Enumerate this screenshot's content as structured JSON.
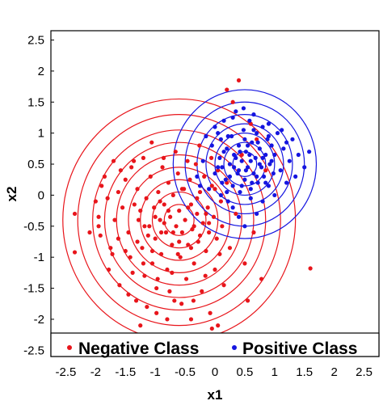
{
  "chart_data": {
    "type": "scatter",
    "xlabel": "x1",
    "ylabel": "x2",
    "xlim": [
      -2.75,
      2.75
    ],
    "ylim": [
      -2.6,
      2.65
    ],
    "xticks": [
      "-2.5",
      "-2",
      "-1.5",
      "-1",
      "-0.5",
      "0",
      "0.5",
      "1",
      "1.5",
      "2",
      "2.5"
    ],
    "xtick_values": [
      -2.5,
      -2,
      -1.5,
      -1,
      -0.5,
      0,
      0.5,
      1,
      1.5,
      2,
      2.5
    ],
    "yticks": [
      "2.5",
      "2",
      "1.5",
      "1",
      "0.5",
      "0",
      "-0.5",
      "-1",
      "-1.5",
      "-2",
      "-2.5"
    ],
    "ytick_values": [
      2.5,
      2,
      1.5,
      1,
      0.5,
      0,
      -0.5,
      -1,
      -1.5,
      -2,
      -2.5
    ],
    "grid": false,
    "legend_position": "bottom inside",
    "series": [
      {
        "name": "Negative Class",
        "color": "#e8151b",
        "contour_center": [
          -0.6,
          -0.4
        ],
        "contour_radii": [
          0.25,
          0.45,
          0.65,
          0.85,
          1.05,
          1.25,
          1.45,
          1.7,
          1.95
        ],
        "points": [
          [
            -2.35,
            -0.3
          ],
          [
            -2.35,
            -0.92
          ],
          [
            -2.1,
            -0.6
          ],
          [
            -2.0,
            -0.1
          ],
          [
            -1.95,
            -0.35
          ],
          [
            -1.92,
            -0.65
          ],
          [
            -1.9,
            0.15
          ],
          [
            -1.85,
            0.3
          ],
          [
            -1.8,
            -0.05
          ],
          [
            -1.78,
            -1.2
          ],
          [
            -1.75,
            -0.85
          ],
          [
            -1.7,
            0.55
          ],
          [
            -1.68,
            -0.4
          ],
          [
            -1.62,
            0.05
          ],
          [
            -1.6,
            -1.45
          ],
          [
            -1.55,
            -0.2
          ],
          [
            -1.5,
            0.25
          ],
          [
            -1.45,
            -0.6
          ],
          [
            -1.42,
            -1.0
          ],
          [
            -1.4,
            0.45
          ],
          [
            -1.35,
            -0.15
          ],
          [
            -1.32,
            -1.7
          ],
          [
            -1.3,
            0.1
          ],
          [
            -1.28,
            -0.4
          ],
          [
            -1.25,
            -2.1
          ],
          [
            -1.22,
            -0.85
          ],
          [
            -1.2,
            0.6
          ],
          [
            -1.18,
            -1.3
          ],
          [
            -1.15,
            -0.05
          ],
          [
            -1.1,
            -0.5
          ],
          [
            -1.08,
            0.3
          ],
          [
            -1.05,
            -1.1
          ],
          [
            -1.02,
            -0.2
          ],
          [
            -1.0,
            -0.7
          ],
          [
            -0.98,
            -1.5
          ],
          [
            -0.95,
            0.05
          ],
          [
            -0.92,
            -0.4
          ],
          [
            -0.9,
            -0.95
          ],
          [
            -0.88,
            0.45
          ],
          [
            -0.85,
            -0.15
          ],
          [
            -0.82,
            -0.6
          ],
          [
            -0.8,
            -1.2
          ],
          [
            -0.78,
            0.2
          ],
          [
            -0.75,
            -0.35
          ],
          [
            -0.72,
            -0.8
          ],
          [
            -0.7,
            0.0
          ],
          [
            -0.68,
            -1.7
          ],
          [
            -0.65,
            -0.5
          ],
          [
            -0.62,
            0.35
          ],
          [
            -0.6,
            -0.25
          ],
          [
            -0.58,
            -1.0
          ],
          [
            -0.55,
            -0.6
          ],
          [
            -0.52,
            0.1
          ],
          [
            -0.5,
            -0.4
          ],
          [
            -0.48,
            -1.35
          ],
          [
            -0.45,
            -0.8
          ],
          [
            -0.42,
            0.25
          ],
          [
            -0.4,
            -0.15
          ],
          [
            -0.38,
            -0.55
          ],
          [
            -0.35,
            -1.1
          ],
          [
            -0.32,
            0.5
          ],
          [
            -0.3,
            -0.3
          ],
          [
            -0.28,
            -0.75
          ],
          [
            -0.25,
            0.05
          ],
          [
            -0.22,
            -1.55
          ],
          [
            -0.2,
            -0.45
          ],
          [
            -0.18,
            0.3
          ],
          [
            -0.15,
            -0.9
          ],
          [
            -0.12,
            -0.2
          ],
          [
            -0.1,
            -0.6
          ],
          [
            -0.08,
            -1.9
          ],
          [
            -0.05,
            0.15
          ],
          [
            -0.02,
            -0.35
          ],
          [
            0.0,
            -1.2
          ],
          [
            0.03,
            -0.7
          ],
          [
            0.05,
            0.4
          ],
          [
            0.1,
            -0.1
          ],
          [
            0.12,
            -0.5
          ],
          [
            0.15,
            -1.45
          ],
          [
            0.2,
            0.2
          ],
          [
            0.25,
            -0.85
          ],
          [
            0.3,
            1.5
          ],
          [
            0.35,
            -0.3
          ],
          [
            0.4,
            1.85
          ],
          [
            0.45,
            0.65
          ],
          [
            0.5,
            -1.1
          ],
          [
            0.55,
            -1.7
          ],
          [
            0.6,
            1.15
          ],
          [
            0.65,
            -0.6
          ],
          [
            0.7,
            0.9
          ],
          [
            0.78,
            -1.35
          ],
          [
            0.85,
            0.4
          ],
          [
            -0.05,
            -2.15
          ],
          [
            0.05,
            -2.1
          ],
          [
            1.6,
            -1.18
          ],
          [
            0.2,
            1.7
          ],
          [
            -1.95,
            -0.5
          ],
          [
            -1.72,
            -0.95
          ],
          [
            -1.58,
            0.4
          ],
          [
            -1.45,
            -1.6
          ],
          [
            -1.36,
            0.55
          ],
          [
            -1.14,
            -1.8
          ],
          [
            -1.06,
            0.85
          ],
          [
            -0.96,
            -1.35
          ],
          [
            -0.86,
            0.6
          ],
          [
            -0.76,
            -1.55
          ],
          [
            -0.66,
            0.7
          ],
          [
            -0.56,
            -1.75
          ],
          [
            -0.46,
            0.55
          ],
          [
            -0.36,
            -1.7
          ],
          [
            -0.26,
            0.8
          ],
          [
            -0.16,
            -1.3
          ],
          [
            -0.06,
            0.6
          ],
          [
            0.08,
            -0.95
          ],
          [
            -1.25,
            -0.25
          ],
          [
            -1.12,
            -0.65
          ],
          [
            -1.0,
            -0.35
          ],
          [
            -0.85,
            -0.45
          ],
          [
            -0.7,
            -0.6
          ],
          [
            -0.6,
            -0.75
          ],
          [
            -0.45,
            -0.2
          ],
          [
            -0.35,
            -0.5
          ],
          [
            -0.25,
            -0.65
          ],
          [
            -0.15,
            -0.3
          ],
          [
            -0.62,
            -0.95
          ],
          [
            -0.78,
            -0.25
          ],
          [
            -0.9,
            -0.6
          ],
          [
            -1.05,
            -0.9
          ],
          [
            -1.18,
            -0.5
          ],
          [
            -0.55,
            0.1
          ],
          [
            -0.3,
            -0.05
          ],
          [
            -0.1,
            -0.45
          ],
          [
            0.0,
            0.1
          ],
          [
            -0.4,
            -0.85
          ],
          [
            -0.72,
            -1.25
          ],
          [
            -0.92,
            -0.1
          ],
          [
            -1.3,
            -0.75
          ],
          [
            -1.5,
            -0.9
          ],
          [
            -1.62,
            -0.7
          ],
          [
            -1.38,
            -1.25
          ],
          [
            -1.2,
            -1.1
          ],
          [
            -0.98,
            -1.9
          ],
          [
            -0.8,
            -2.0
          ],
          [
            -0.4,
            -2.0
          ]
        ]
      },
      {
        "name": "Positive Class",
        "color": "#1515e0",
        "contour_center": [
          0.5,
          0.5
        ],
        "contour_radii": [
          0.2,
          0.35,
          0.5,
          0.65,
          0.8,
          1.0,
          1.2
        ],
        "points": [
          [
            -0.3,
            0.3
          ],
          [
            -0.2,
            0.55
          ],
          [
            -0.1,
            0.1
          ],
          [
            -0.05,
            0.8
          ],
          [
            0.0,
            0.35
          ],
          [
            0.05,
            1.0
          ],
          [
            0.08,
            0.6
          ],
          [
            0.1,
            0.0
          ],
          [
            0.12,
            0.45
          ],
          [
            0.15,
            1.2
          ],
          [
            0.18,
            0.25
          ],
          [
            0.2,
            0.75
          ],
          [
            0.22,
            -0.1
          ],
          [
            0.25,
            0.5
          ],
          [
            0.28,
            0.95
          ],
          [
            0.3,
            0.15
          ],
          [
            0.32,
            0.65
          ],
          [
            0.35,
            1.35
          ],
          [
            0.38,
            0.35
          ],
          [
            0.4,
            0.8
          ],
          [
            0.42,
            0.05
          ],
          [
            0.45,
            0.55
          ],
          [
            0.48,
            1.05
          ],
          [
            0.5,
            0.25
          ],
          [
            0.52,
            0.7
          ],
          [
            0.55,
            0.45
          ],
          [
            0.58,
            1.2
          ],
          [
            0.6,
            0.1
          ],
          [
            0.62,
            0.85
          ],
          [
            0.65,
            0.35
          ],
          [
            0.68,
            0.6
          ],
          [
            0.7,
            1.0
          ],
          [
            0.72,
            0.2
          ],
          [
            0.75,
            0.75
          ],
          [
            0.78,
            0.45
          ],
          [
            0.8,
            1.1
          ],
          [
            0.82,
            0.3
          ],
          [
            0.85,
            0.65
          ],
          [
            0.88,
            0.9
          ],
          [
            0.9,
            0.15
          ],
          [
            0.92,
            0.5
          ],
          [
            0.95,
            0.8
          ],
          [
            0.98,
            0.35
          ],
          [
            1.0,
            0.65
          ],
          [
            1.05,
            1.0
          ],
          [
            1.1,
            0.4
          ],
          [
            1.15,
            0.75
          ],
          [
            1.2,
            0.2
          ],
          [
            1.25,
            0.55
          ],
          [
            1.3,
            0.9
          ],
          [
            1.35,
            0.3
          ],
          [
            1.4,
            0.65
          ],
          [
            1.5,
            0.45
          ],
          [
            1.58,
            0.7
          ],
          [
            0.1,
            0.9
          ],
          [
            0.2,
            0.05
          ],
          [
            0.3,
            1.25
          ],
          [
            0.4,
            0.4
          ],
          [
            0.5,
            0.9
          ],
          [
            0.6,
            0.55
          ],
          [
            0.7,
            0.3
          ],
          [
            0.8,
            0.6
          ],
          [
            0.9,
            1.15
          ],
          [
            0.45,
            0.15
          ],
          [
            0.55,
            0.8
          ],
          [
            0.65,
            1.05
          ],
          [
            0.35,
            0.6
          ],
          [
            0.25,
            0.3
          ],
          [
            0.15,
            0.7
          ],
          [
            0.05,
            0.45
          ],
          [
            0.75,
            0.5
          ],
          [
            0.85,
            0.2
          ],
          [
            0.95,
            0.55
          ],
          [
            0.42,
            0.7
          ],
          [
            0.52,
            0.4
          ],
          [
            0.62,
            0.2
          ],
          [
            0.72,
            0.85
          ],
          [
            0.32,
            0.45
          ],
          [
            0.22,
            0.95
          ],
          [
            0.12,
            0.2
          ],
          [
            0.6,
            -0.05
          ],
          [
            0.4,
            -0.35
          ],
          [
            0.7,
            -0.3
          ],
          [
            0.3,
            -0.2
          ],
          [
            0.5,
            -0.5
          ],
          [
            0.8,
            -0.1
          ],
          [
            1.0,
            0.0
          ],
          [
            1.12,
            1.05
          ],
          [
            0.48,
            1.4
          ],
          [
            0.65,
            1.3
          ],
          [
            -0.15,
            0.95
          ],
          [
            -0.25,
            0.15
          ],
          [
            0.0,
            1.1
          ],
          [
            1.2,
            0.85
          ],
          [
            0.9,
            0.95
          ],
          [
            0.58,
            0.65
          ]
        ]
      }
    ]
  }
}
